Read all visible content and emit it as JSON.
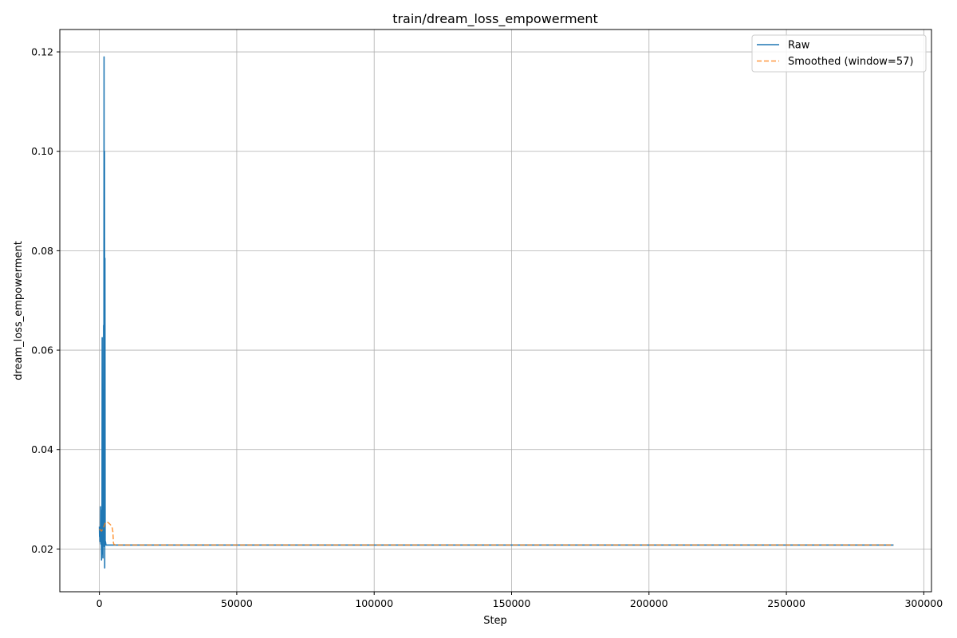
{
  "chart_data": {
    "type": "line",
    "title": "train/dream_loss_empowerment",
    "xlabel": "Step",
    "ylabel": "dream_loss_empowerment",
    "xlim": [
      -14400,
      302800
    ],
    "ylim": [
      0.0114,
      0.1245
    ],
    "xticks": [
      0,
      50000,
      100000,
      150000,
      200000,
      250000,
      300000
    ],
    "xtick_labels": [
      "0",
      "50000",
      "100000",
      "150000",
      "200000",
      "250000",
      "300000"
    ],
    "yticks": [
      0.02,
      0.04,
      0.06,
      0.08,
      0.1,
      0.12
    ],
    "ytick_labels": [
      "0.02",
      "0.04",
      "0.06",
      "0.08",
      "0.10",
      "0.12"
    ],
    "grid": true,
    "legend_position": "top-right",
    "series": [
      {
        "name": "Raw",
        "color": "#1f77b4",
        "style": "solid",
        "x": [
          0,
          60,
          130,
          200,
          280,
          360,
          440,
          520,
          600,
          700,
          780,
          860,
          940,
          1020,
          1100,
          1200,
          1300,
          1380,
          1460,
          1540,
          1620,
          1700,
          1780,
          1860,
          1940,
          2020,
          2100,
          2200,
          2400,
          3000,
          5000,
          50000,
          100000,
          150000,
          200000,
          250000,
          289000
        ],
        "y": [
          0.0245,
          0.0225,
          0.0238,
          0.0215,
          0.0232,
          0.0222,
          0.0285,
          0.021,
          0.0278,
          0.022,
          0.0178,
          0.024,
          0.019,
          0.0625,
          0.0205,
          0.0235,
          0.0182,
          0.052,
          0.0215,
          0.065,
          0.034,
          0.119,
          0.0205,
          0.1,
          0.0162,
          0.0785,
          0.0208,
          0.0215,
          0.0208,
          0.0208,
          0.0208,
          0.0208,
          0.0208,
          0.0208,
          0.0208,
          0.0208,
          0.0208
        ]
      },
      {
        "name": "Smoothed (window=57)",
        "color": "#ff7f0e",
        "style": "dashed",
        "x": [
          0,
          400,
          800,
          1200,
          1500,
          1700,
          1900,
          2100,
          2400,
          2800,
          3200,
          3600,
          4000,
          4400,
          4700,
          4900,
          5000,
          5100,
          5300,
          6000,
          50000,
          100000,
          150000,
          200000,
          250000,
          289000
        ],
        "y": [
          0.024,
          0.0238,
          0.0236,
          0.024,
          0.0243,
          0.0246,
          0.0249,
          0.0252,
          0.0254,
          0.0254,
          0.0253,
          0.0251,
          0.0249,
          0.0246,
          0.0242,
          0.0235,
          0.0225,
          0.0213,
          0.0209,
          0.0208,
          0.0208,
          0.0208,
          0.0208,
          0.0208,
          0.0208,
          0.0208
        ]
      }
    ]
  }
}
